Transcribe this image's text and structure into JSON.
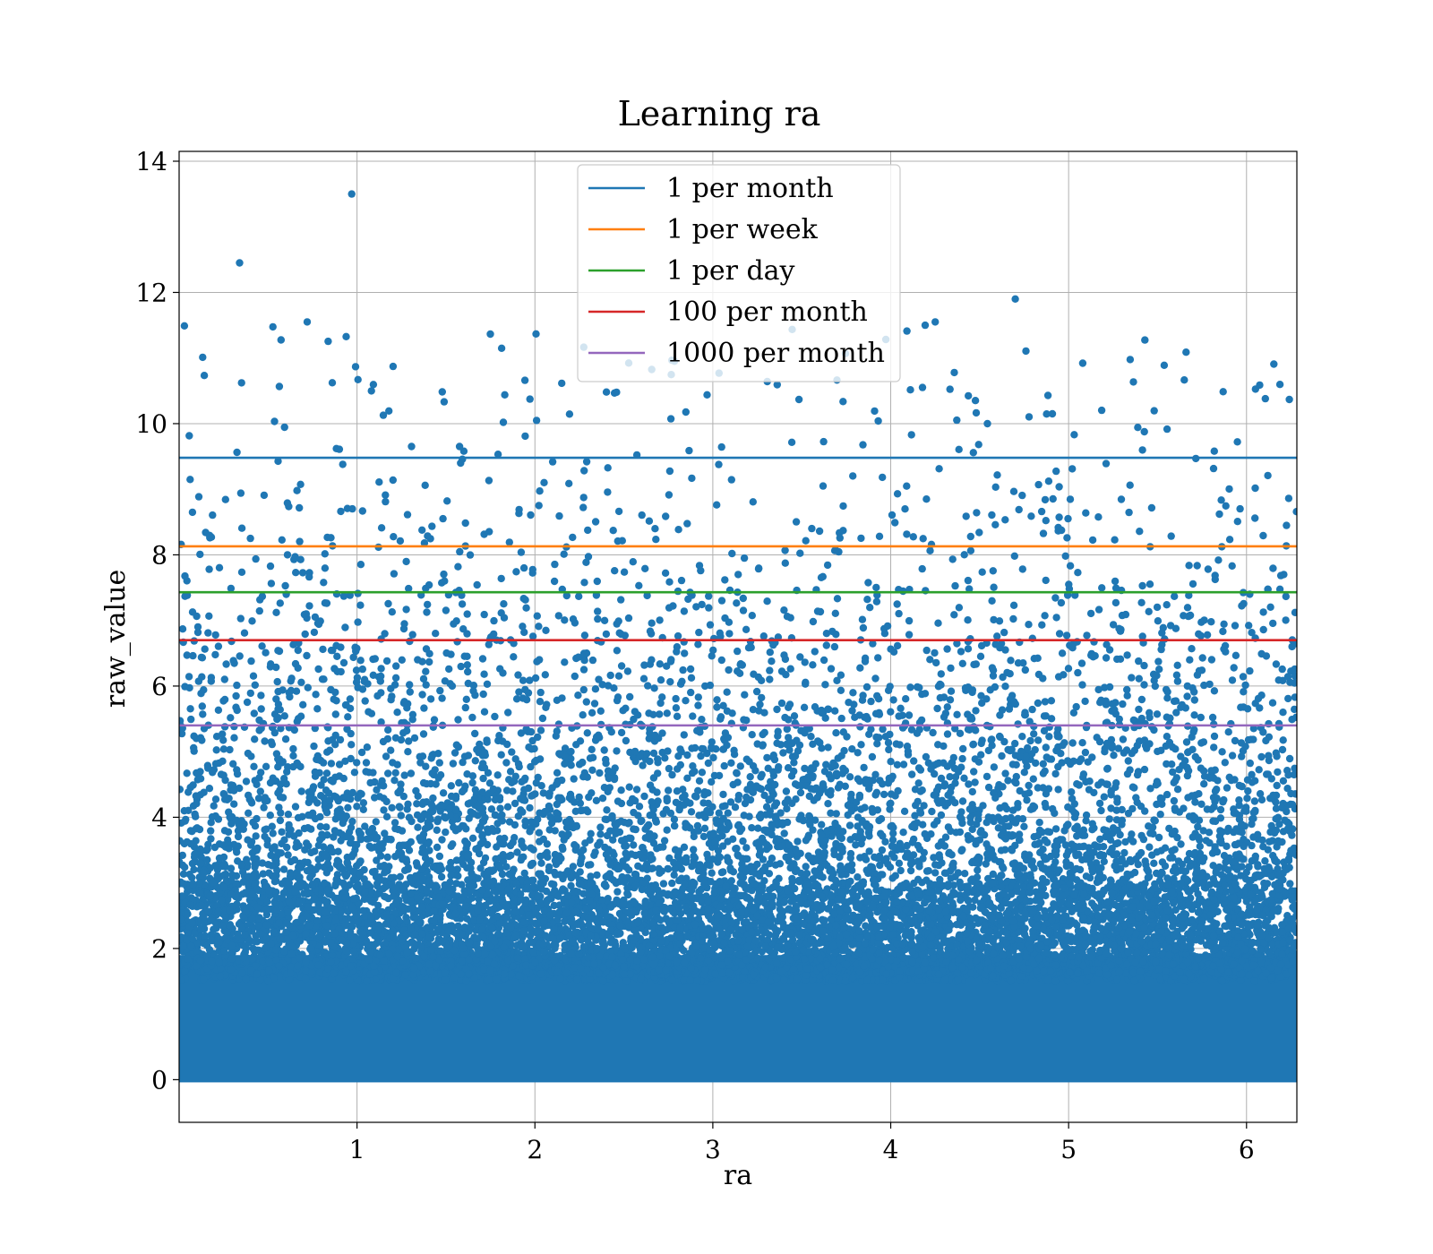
{
  "chart_data": {
    "type": "scatter",
    "title": "Learning ra",
    "xlabel": "ra",
    "ylabel": "raw_value",
    "xlim": [
      0.0,
      6.283
    ],
    "ylim": [
      -0.65,
      14.15
    ],
    "x_ticks": [
      1,
      2,
      3,
      4,
      5,
      6
    ],
    "x_tick_labels": [
      "1",
      "2",
      "3",
      "4",
      "5",
      "6"
    ],
    "y_ticks": [
      0,
      2,
      4,
      6,
      8,
      10,
      12,
      14
    ],
    "y_tick_labels": [
      "0",
      "2",
      "4",
      "6",
      "8",
      "10",
      "12",
      "14"
    ],
    "grid": true,
    "legend_position": "upper center",
    "scatter": {
      "name": "",
      "color": "#1f77b4",
      "distribution": "dense near 0, thinning with increasing raw_value; uniform across ra",
      "notable_points": [
        {
          "x": 0.97,
          "y": 13.5
        },
        {
          "x": 0.34,
          "y": 12.45
        },
        {
          "x": 4.7,
          "y": 11.9
        },
        {
          "x": 4.25,
          "y": 11.55
        },
        {
          "x": 0.72,
          "y": 11.55
        }
      ]
    },
    "series": [
      {
        "name": "1 per month",
        "type": "hline",
        "y": 9.48,
        "color": "#1f77b4"
      },
      {
        "name": "1 per week",
        "type": "hline",
        "y": 8.13,
        "color": "#ff7f0e"
      },
      {
        "name": "1 per day",
        "type": "hline",
        "y": 7.43,
        "color": "#2ca02c"
      },
      {
        "name": "100 per month",
        "type": "hline",
        "y": 6.7,
        "color": "#d62728"
      },
      {
        "name": "1000 per month",
        "type": "hline",
        "y": 5.4,
        "color": "#9467bd"
      }
    ]
  }
}
